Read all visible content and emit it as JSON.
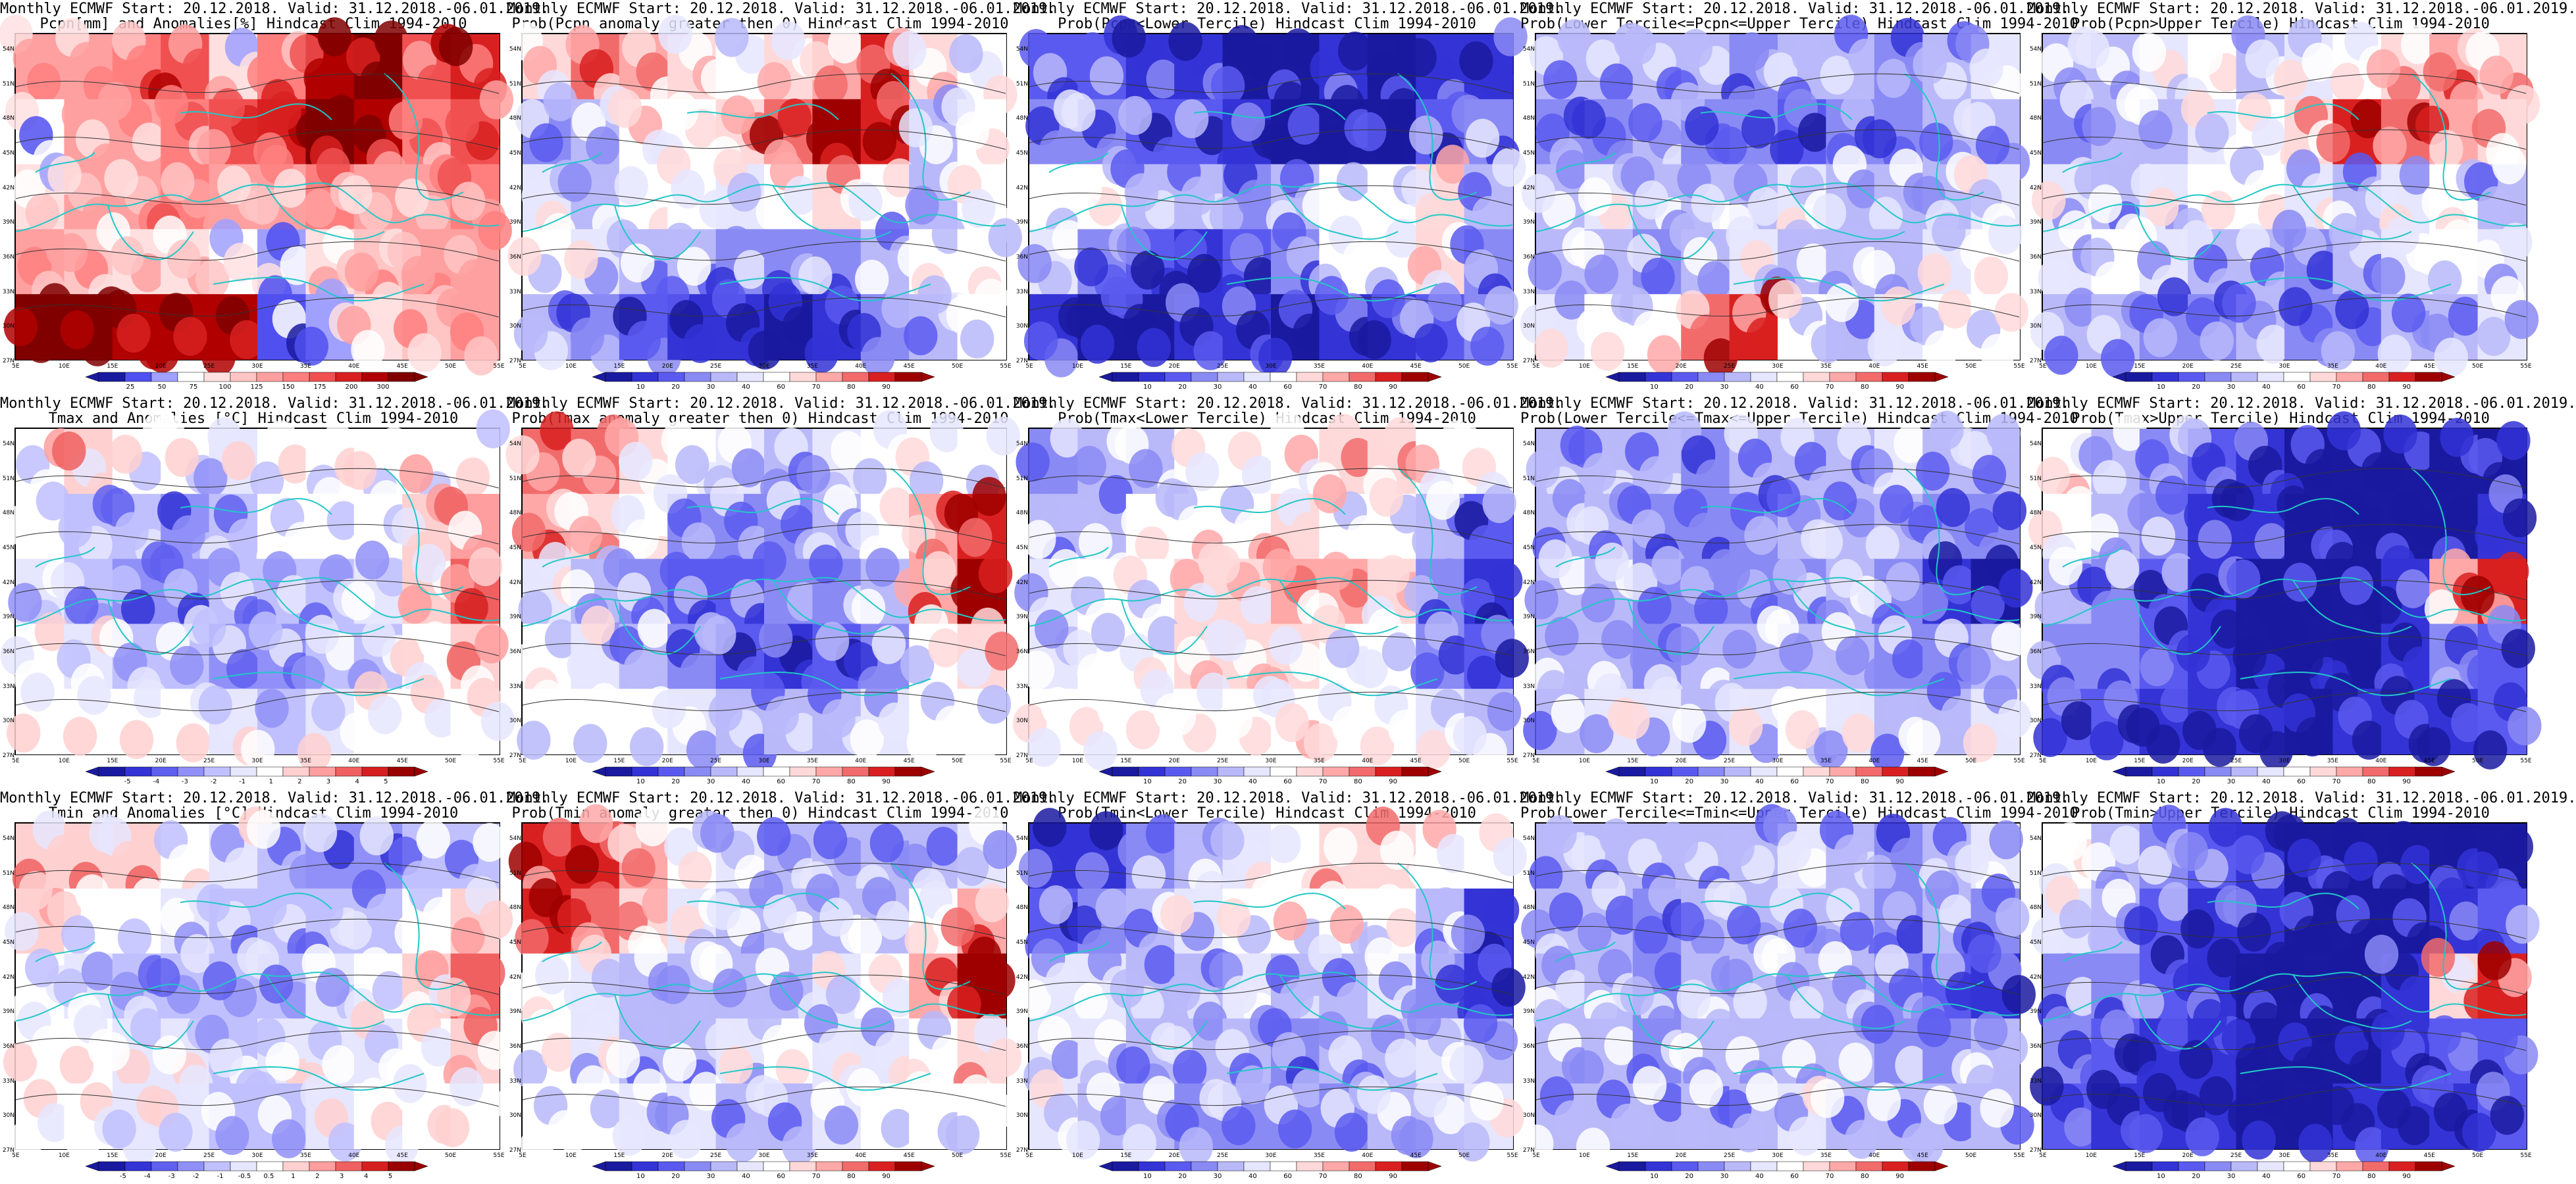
{
  "palettes": {
    "prob": [
      "#1a1aa0",
      "#3333d6",
      "#5a5af0",
      "#8a8af5",
      "#b9b9fa",
      "#e6e6ff",
      "#ffffff",
      "#ffd9d9",
      "#ffa8a8",
      "#f26b6b",
      "#d92020",
      "#9e0000"
    ],
    "anom": [
      "#1a1aa0",
      "#3333d6",
      "#6060f0",
      "#9090f8",
      "#c0c0ff",
      "#e6e6ff",
      "#ffffff",
      "#ffd0d0",
      "#ff9e9e",
      "#f06060",
      "#d62020",
      "#990000"
    ],
    "pcpn": [
      "#1a1aa0",
      "#5050f0",
      "#a0a0ff",
      "#ffffff",
      "#ffe0e0",
      "#ffc4c4",
      "#ffa0a0",
      "#ff7f7f",
      "#f05050",
      "#d82020",
      "#b00000",
      "#800000"
    ]
  },
  "lat_labels": [
    "54N",
    "51N",
    "48N",
    "45N",
    "42N",
    "39N",
    "36N",
    "33N",
    "30N",
    "27N"
  ],
  "lon_labels": [
    "5E",
    "10E",
    "15E",
    "20E",
    "25E",
    "30E",
    "35E",
    "40E",
    "45E",
    "50E",
    "55E"
  ],
  "ticks": {
    "pcpn": [
      "25",
      "50",
      "75",
      "100",
      "125",
      "150",
      "175",
      "200",
      "300"
    ],
    "prob": [
      "10",
      "20",
      "30",
      "40",
      "60",
      "70",
      "80",
      "90"
    ],
    "tmax_anom": [
      "-5",
      "-4",
      "-3",
      "-2",
      "-1",
      "1",
      "2",
      "3",
      "4",
      "5"
    ],
    "tmin_anom": [
      "-5",
      "-4",
      "-3",
      "-2",
      "-1",
      "-0.5",
      "0.5",
      "1",
      "2",
      "3",
      "4",
      "5"
    ]
  },
  "panels": [
    {
      "line1": "Monthly ECMWF Start: 20.12.2018. Valid: 31.12.2018.-06.01.2019.",
      "line2": "Pcpn[mm] and Anomalies[%] Hindcast Clim 1994-2010",
      "scale": "pcpn",
      "palette": "pcpn",
      "field": [
        0.5,
        0.5,
        0.6,
        0.7,
        0.4,
        0.6,
        0.9,
        0.95,
        0.7,
        0.8,
        0.3,
        0.5,
        0.55,
        0.6,
        0.7,
        0.8,
        0.95,
        0.9,
        0.6,
        0.7,
        0.4,
        0.5,
        0.55,
        0.6,
        0.5,
        0.55,
        0.6,
        0.5,
        0.55,
        0.6,
        0.5,
        0.45,
        0.4,
        0.35,
        0.3,
        0.2,
        0.4,
        0.45,
        0.5,
        0.5,
        0.95,
        0.95,
        0.9,
        0.9,
        0.85,
        0.1,
        0.2,
        0.4,
        0.45,
        0.5
      ]
    },
    {
      "line1": "Monthly ECMWF Start: 20.12.2018. Valid: 31.12.2018.-06.01.2019.",
      "line2": "Prob(Pcpn anomaly greater then 0) Hindcast Clim 1994-2010",
      "scale": "prob",
      "palette": "prob",
      "field": [
        0.6,
        0.8,
        0.7,
        0.6,
        0.5,
        0.6,
        0.7,
        0.9,
        0.6,
        0.55,
        0.3,
        0.4,
        0.55,
        0.5,
        0.6,
        0.8,
        0.95,
        0.9,
        0.4,
        0.5,
        0.45,
        0.4,
        0.5,
        0.5,
        0.45,
        0.55,
        0.6,
        0.5,
        0.4,
        0.5,
        0.5,
        0.45,
        0.4,
        0.35,
        0.3,
        0.25,
        0.3,
        0.4,
        0.5,
        0.5,
        0.4,
        0.3,
        0.2,
        0.1,
        0.1,
        0.05,
        0.1,
        0.3,
        0.4,
        0.5
      ]
    },
    {
      "line1": "Monthly ECMWF Start: 20.12.2018. Valid: 31.12.2018.-06.01.2019.",
      "line2": "Prob(Pcpn<Lower Tercile) Hindcast Clim 1994-2010",
      "scale": "prob",
      "palette": "prob",
      "field": [
        0.2,
        0.2,
        0.15,
        0.1,
        0.05,
        0.05,
        0.1,
        0.05,
        0.1,
        0.1,
        0.3,
        0.3,
        0.2,
        0.2,
        0.1,
        0.05,
        0.05,
        0.05,
        0.2,
        0.3,
        0.5,
        0.55,
        0.4,
        0.4,
        0.3,
        0.4,
        0.5,
        0.5,
        0.6,
        0.4,
        0.45,
        0.3,
        0.2,
        0.1,
        0.2,
        0.3,
        0.5,
        0.5,
        0.6,
        0.3,
        0.1,
        0.05,
        0.05,
        0.1,
        0.1,
        0.05,
        0.1,
        0.15,
        0.2,
        0.3
      ]
    },
    {
      "line1": "Monthly ECMWF Start: 20.12.2018. Valid: 31.12.2018.-06.01.2019.",
      "line2": "Prob(Lower Tercile<=Pcpn<=Upper Tercile) Hindcast Clim 1994-2010",
      "scale": "prob",
      "palette": "prob",
      "field": [
        0.4,
        0.35,
        0.4,
        0.35,
        0.3,
        0.4,
        0.35,
        0.3,
        0.4,
        0.45,
        0.3,
        0.25,
        0.35,
        0.3,
        0.25,
        0.2,
        0.3,
        0.25,
        0.35,
        0.4,
        0.4,
        0.45,
        0.4,
        0.35,
        0.4,
        0.45,
        0.4,
        0.35,
        0.4,
        0.45,
        0.4,
        0.35,
        0.3,
        0.4,
        0.45,
        0.4,
        0.35,
        0.4,
        0.45,
        0.5,
        0.45,
        0.5,
        0.55,
        0.8,
        0.9,
        0.5,
        0.4,
        0.45,
        0.5,
        0.5
      ]
    },
    {
      "line1": "Monthly ECMWF Start: 20.12.2018. Valid: 31.12.2018.-06.01.2019.",
      "line2": "Prob(Pcpn>Upper Tercile) Hindcast Clim 1994-2010",
      "scale": "prob",
      "palette": "prob",
      "field": [
        0.4,
        0.4,
        0.45,
        0.5,
        0.4,
        0.45,
        0.5,
        0.6,
        0.7,
        0.6,
        0.3,
        0.35,
        0.4,
        0.45,
        0.5,
        0.6,
        0.85,
        0.8,
        0.7,
        0.6,
        0.45,
        0.4,
        0.45,
        0.5,
        0.5,
        0.45,
        0.4,
        0.45,
        0.5,
        0.4,
        0.45,
        0.5,
        0.45,
        0.4,
        0.35,
        0.3,
        0.4,
        0.45,
        0.5,
        0.45,
        0.4,
        0.35,
        0.3,
        0.3,
        0.35,
        0.25,
        0.3,
        0.35,
        0.4,
        0.45
      ]
    },
    {
      "line1": "Monthly ECMWF Start: 20.12.2018. Valid: 31.12.2018.-06.01.2019.",
      "line2": "Tmax and Anomalies [°C] Hindcast Clim 1994-2010",
      "scale": "tmax_anom",
      "palette": "anom",
      "field": [
        0.55,
        0.6,
        0.5,
        0.5,
        0.45,
        0.5,
        0.5,
        0.5,
        0.55,
        0.5,
        0.5,
        0.4,
        0.35,
        0.3,
        0.4,
        0.5,
        0.5,
        0.5,
        0.6,
        0.7,
        0.45,
        0.4,
        0.3,
        0.3,
        0.35,
        0.35,
        0.4,
        0.45,
        0.6,
        0.8,
        0.5,
        0.45,
        0.4,
        0.35,
        0.3,
        0.3,
        0.35,
        0.4,
        0.5,
        0.6,
        0.5,
        0.5,
        0.5,
        0.5,
        0.45,
        0.4,
        0.45,
        0.5,
        0.5,
        0.5
      ]
    },
    {
      "line1": "Monthly ECMWF Start: 20.12.2018. Valid: 31.12.2018.-06.01.2019.",
      "line2": "Prob(Tmax anomaly greater then 0) Hindcast Clim 1994-2010",
      "scale": "prob",
      "palette": "prob",
      "field": [
        0.8,
        0.75,
        0.6,
        0.5,
        0.45,
        0.4,
        0.45,
        0.5,
        0.55,
        0.5,
        0.7,
        0.6,
        0.5,
        0.3,
        0.3,
        0.3,
        0.4,
        0.5,
        0.7,
        0.85,
        0.45,
        0.4,
        0.3,
        0.2,
        0.2,
        0.25,
        0.3,
        0.4,
        0.7,
        0.95,
        0.5,
        0.45,
        0.35,
        0.25,
        0.2,
        0.15,
        0.2,
        0.3,
        0.5,
        0.6,
        0.5,
        0.5,
        0.5,
        0.45,
        0.4,
        0.35,
        0.4,
        0.45,
        0.5,
        0.5
      ]
    },
    {
      "line1": "Monthly ECMWF Start: 20.12.2018. Valid: 31.12.2018.-06.01.2019.",
      "line2": "Prob(Tmax<Lower Tercile) Hindcast Clim 1994-2010",
      "scale": "prob",
      "palette": "prob",
      "field": [
        0.3,
        0.35,
        0.4,
        0.5,
        0.5,
        0.55,
        0.6,
        0.6,
        0.55,
        0.5,
        0.4,
        0.4,
        0.5,
        0.55,
        0.55,
        0.6,
        0.55,
        0.5,
        0.4,
        0.2,
        0.45,
        0.5,
        0.55,
        0.6,
        0.65,
        0.7,
        0.7,
        0.6,
        0.3,
        0.1,
        0.45,
        0.5,
        0.55,
        0.6,
        0.6,
        0.6,
        0.55,
        0.5,
        0.3,
        0.2,
        0.5,
        0.5,
        0.5,
        0.5,
        0.5,
        0.55,
        0.5,
        0.5,
        0.45,
        0.4
      ]
    },
    {
      "line1": "Monthly ECMWF Start: 20.12.2018. Valid: 31.12.2018.-06.01.2019.",
      "line2": "Prob(Lower Tercile<=Tmax<=Upper Tercile) Hindcast Clim 1994-2010",
      "scale": "prob",
      "palette": "prob",
      "field": [
        0.4,
        0.4,
        0.35,
        0.3,
        0.35,
        0.4,
        0.4,
        0.45,
        0.4,
        0.35,
        0.4,
        0.35,
        0.3,
        0.25,
        0.3,
        0.35,
        0.4,
        0.35,
        0.3,
        0.25,
        0.4,
        0.35,
        0.3,
        0.25,
        0.25,
        0.3,
        0.35,
        0.3,
        0.15,
        0.05,
        0.4,
        0.35,
        0.3,
        0.35,
        0.4,
        0.4,
        0.35,
        0.3,
        0.3,
        0.35,
        0.4,
        0.45,
        0.45,
        0.4,
        0.45,
        0.5,
        0.45,
        0.4,
        0.4,
        0.45
      ]
    },
    {
      "line1": "Monthly ECMWF Start: 20.12.2018. Valid: 31.12.2018.-06.01.2019.",
      "line2": "Prob(Tmax>Upper Tercile) Hindcast Clim 1994-2010",
      "scale": "prob",
      "palette": "prob",
      "field": [
        0.55,
        0.4,
        0.3,
        0.2,
        0.1,
        0.05,
        0.05,
        0.05,
        0.05,
        0.05,
        0.5,
        0.4,
        0.3,
        0.15,
        0.1,
        0.05,
        0.05,
        0.05,
        0.05,
        0.1,
        0.35,
        0.3,
        0.2,
        0.1,
        0.05,
        0.05,
        0.05,
        0.1,
        0.7,
        0.9,
        0.3,
        0.25,
        0.2,
        0.1,
        0.05,
        0.05,
        0.05,
        0.1,
        0.3,
        0.2,
        0.2,
        0.2,
        0.15,
        0.1,
        0.1,
        0.05,
        0.1,
        0.1,
        0.15,
        0.2
      ]
    },
    {
      "line1": "Monthly ECMWF Start: 20.12.2018. Valid: 31.12.2018.-06.01.2019.",
      "line2": "Tmin and Anomalies [°C] Hindcast Clim 1994-2010",
      "scale": "tmin_anom",
      "palette": "anom",
      "field": [
        0.6,
        0.65,
        0.6,
        0.5,
        0.45,
        0.4,
        0.3,
        0.3,
        0.35,
        0.4,
        0.6,
        0.55,
        0.5,
        0.45,
        0.4,
        0.35,
        0.35,
        0.4,
        0.5,
        0.6,
        0.5,
        0.45,
        0.4,
        0.4,
        0.4,
        0.4,
        0.45,
        0.5,
        0.6,
        0.75,
        0.5,
        0.5,
        0.45,
        0.45,
        0.4,
        0.45,
        0.45,
        0.45,
        0.5,
        0.6,
        0.5,
        0.5,
        0.45,
        0.45,
        0.4,
        0.4,
        0.45,
        0.5,
        0.5,
        0.5
      ]
    },
    {
      "line1": "Monthly ECMWF Start: 20.12.2018. Valid: 31.12.2018.-06.01.2019.",
      "line2": "Prob(Tmin anomaly greater then 0) Hindcast Clim 1994-2010",
      "scale": "prob",
      "palette": "prob",
      "field": [
        0.9,
        0.85,
        0.7,
        0.55,
        0.45,
        0.4,
        0.35,
        0.35,
        0.4,
        0.45,
        0.85,
        0.75,
        0.6,
        0.45,
        0.4,
        0.35,
        0.35,
        0.4,
        0.5,
        0.7,
        0.5,
        0.45,
        0.4,
        0.35,
        0.35,
        0.4,
        0.45,
        0.5,
        0.7,
        0.95,
        0.5,
        0.45,
        0.4,
        0.4,
        0.45,
        0.5,
        0.45,
        0.45,
        0.5,
        0.6,
        0.5,
        0.5,
        0.45,
        0.45,
        0.4,
        0.4,
        0.45,
        0.5,
        0.5,
        0.5
      ]
    },
    {
      "line1": "Monthly ECMWF Start: 20.12.2018. Valid: 31.12.2018.-06.01.2019.",
      "line2": "Prob(Tmin<Lower Tercile) Hindcast Clim 1994-2010",
      "scale": "prob",
      "palette": "prob",
      "field": [
        0.1,
        0.15,
        0.3,
        0.4,
        0.45,
        0.5,
        0.6,
        0.6,
        0.55,
        0.5,
        0.2,
        0.25,
        0.4,
        0.45,
        0.5,
        0.55,
        0.55,
        0.5,
        0.4,
        0.1,
        0.45,
        0.45,
        0.4,
        0.4,
        0.45,
        0.4,
        0.4,
        0.45,
        0.3,
        0.1,
        0.45,
        0.45,
        0.4,
        0.35,
        0.35,
        0.3,
        0.35,
        0.4,
        0.45,
        0.4,
        0.45,
        0.4,
        0.35,
        0.3,
        0.3,
        0.3,
        0.3,
        0.35,
        0.4,
        0.45
      ]
    },
    {
      "line1": "Monthly ECMWF Start: 20.12.2018. Valid: 31.12.2018.-06.01.2019.",
      "line2": "Prob(Lower Tercile<=Tmin<=Upper Tercile) Hindcast Clim 1994-2010",
      "scale": "prob",
      "palette": "prob",
      "field": [
        0.4,
        0.35,
        0.4,
        0.35,
        0.4,
        0.45,
        0.35,
        0.3,
        0.4,
        0.45,
        0.4,
        0.35,
        0.3,
        0.35,
        0.4,
        0.35,
        0.35,
        0.3,
        0.35,
        0.3,
        0.4,
        0.35,
        0.3,
        0.35,
        0.4,
        0.35,
        0.4,
        0.3,
        0.2,
        0.1,
        0.4,
        0.35,
        0.3,
        0.35,
        0.4,
        0.4,
        0.35,
        0.3,
        0.3,
        0.35,
        0.35,
        0.4,
        0.35,
        0.35,
        0.4,
        0.45,
        0.4,
        0.35,
        0.35,
        0.4
      ]
    },
    {
      "line1": "Monthly ECMWF Start: 20.12.2018. Valid: 31.12.2018.-06.01.2019.",
      "line2": "Prob(Tmin>Upper Tercile) Hindcast Clim 1994-2010",
      "scale": "prob",
      "palette": "prob",
      "field": [
        0.5,
        0.4,
        0.3,
        0.2,
        0.1,
        0.05,
        0.05,
        0.05,
        0.05,
        0.05,
        0.45,
        0.35,
        0.2,
        0.15,
        0.1,
        0.05,
        0.05,
        0.05,
        0.1,
        0.2,
        0.3,
        0.25,
        0.2,
        0.1,
        0.05,
        0.05,
        0.05,
        0.1,
        0.6,
        0.9,
        0.25,
        0.2,
        0.15,
        0.1,
        0.05,
        0.05,
        0.05,
        0.1,
        0.2,
        0.2,
        0.2,
        0.15,
        0.1,
        0.1,
        0.05,
        0.05,
        0.1,
        0.1,
        0.15,
        0.2
      ]
    }
  ]
}
